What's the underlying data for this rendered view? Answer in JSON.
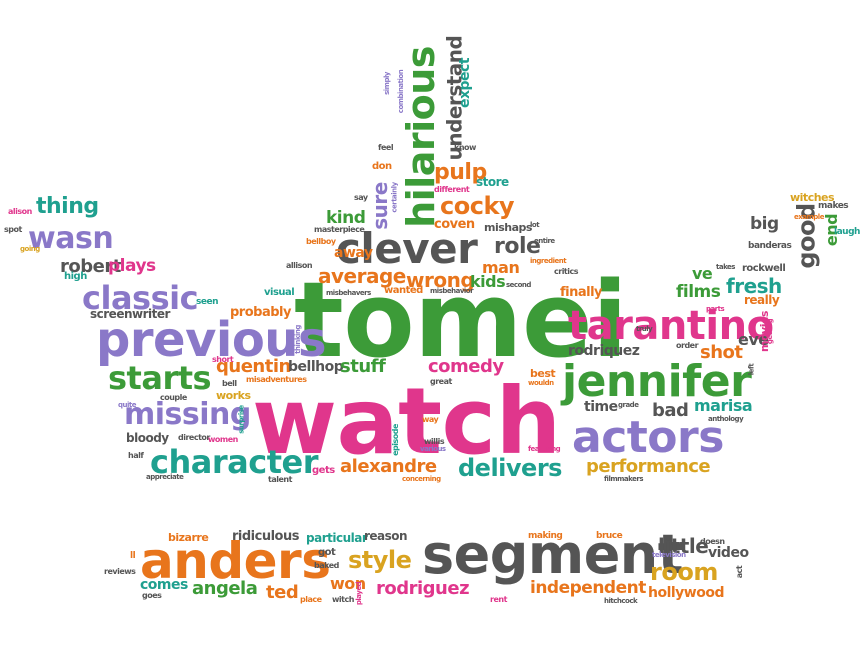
{
  "palette": {
    "pink": "#e0368c",
    "green": "#3c9b38",
    "orange": "#e8751c",
    "purple": "#8a78c8",
    "gray": "#555555",
    "teal": "#1fa08f",
    "yellow": "#d9a320"
  },
  "words": [
    {
      "text": "watch",
      "color": "pink"
    },
    {
      "text": "tomei",
      "color": "green"
    },
    {
      "text": "segment",
      "color": "gray"
    },
    {
      "text": "anders",
      "color": "orange"
    },
    {
      "text": "jennifer",
      "color": "green"
    },
    {
      "text": "tarantino",
      "color": "pink"
    },
    {
      "text": "actors",
      "color": "purple"
    },
    {
      "text": "previous",
      "color": "purple"
    },
    {
      "text": "clever",
      "color": "gray"
    },
    {
      "text": "character",
      "color": "teal"
    },
    {
      "text": "hilarious",
      "color": "green"
    },
    {
      "text": "classic",
      "color": "purple"
    },
    {
      "text": "starts",
      "color": "green"
    },
    {
      "text": "missing",
      "color": "purple"
    },
    {
      "text": "delivers",
      "color": "teal"
    },
    {
      "text": "performance",
      "color": "yellow"
    },
    {
      "text": "alexandre",
      "color": "orange"
    },
    {
      "text": "wasn",
      "color": "purple"
    },
    {
      "text": "thing",
      "color": "teal"
    },
    {
      "text": "robert",
      "color": "gray"
    },
    {
      "text": "plays",
      "color": "pink"
    },
    {
      "text": "screenwriter",
      "color": "gray"
    },
    {
      "text": "probably",
      "color": "orange"
    },
    {
      "text": "quentin",
      "color": "orange"
    },
    {
      "text": "bellhop",
      "color": "gray"
    },
    {
      "text": "stuff",
      "color": "green"
    },
    {
      "text": "comedy",
      "color": "pink"
    },
    {
      "text": "average",
      "color": "orange"
    },
    {
      "text": "wrong",
      "color": "orange"
    },
    {
      "text": "kids",
      "color": "green"
    },
    {
      "text": "man",
      "color": "orange"
    },
    {
      "text": "role",
      "color": "gray"
    },
    {
      "text": "cocky",
      "color": "orange"
    },
    {
      "text": "kind",
      "color": "green"
    },
    {
      "text": "away",
      "color": "orange"
    },
    {
      "text": "pulp",
      "color": "orange"
    },
    {
      "text": "coven",
      "color": "orange"
    },
    {
      "text": "mishaps",
      "color": "gray"
    },
    {
      "text": "store",
      "color": "teal"
    },
    {
      "text": "understand",
      "color": "gray"
    },
    {
      "text": "expect",
      "color": "teal"
    },
    {
      "text": "sure",
      "color": "purple"
    },
    {
      "text": "fresh",
      "color": "teal"
    },
    {
      "text": "films",
      "color": "green"
    },
    {
      "text": "ve",
      "color": "green"
    },
    {
      "text": "good",
      "color": "gray"
    },
    {
      "text": "big",
      "color": "gray"
    },
    {
      "text": "eve",
      "color": "gray"
    },
    {
      "text": "end",
      "color": "green"
    },
    {
      "text": "shot",
      "color": "orange"
    },
    {
      "text": "rodriquez",
      "color": "gray"
    },
    {
      "text": "bad",
      "color": "gray"
    },
    {
      "text": "marisa",
      "color": "teal"
    },
    {
      "text": "time",
      "color": "gray"
    },
    {
      "text": "finally",
      "color": "orange"
    },
    {
      "text": "really",
      "color": "orange"
    },
    {
      "text": "movies",
      "color": "pink"
    },
    {
      "text": "style",
      "color": "yellow"
    },
    {
      "text": "rodriguez",
      "color": "pink"
    },
    {
      "text": "angela",
      "color": "green"
    },
    {
      "text": "ted",
      "color": "orange"
    },
    {
      "text": "won",
      "color": "orange"
    },
    {
      "text": "independent",
      "color": "orange"
    },
    {
      "text": "room",
      "color": "yellow"
    },
    {
      "text": "little",
      "color": "gray"
    },
    {
      "text": "hollywood",
      "color": "orange"
    },
    {
      "text": "comes",
      "color": "teal"
    },
    {
      "text": "video",
      "color": "gray"
    },
    {
      "text": "bizarre",
      "color": "orange"
    },
    {
      "text": "ridiculous",
      "color": "gray"
    },
    {
      "text": "particular",
      "color": "teal"
    },
    {
      "text": "reason",
      "color": "gray"
    },
    {
      "text": "rockwell",
      "color": "gray"
    },
    {
      "text": "banderas",
      "color": "gray"
    },
    {
      "text": "witches",
      "color": "yellow"
    },
    {
      "text": "makes",
      "color": "gray"
    },
    {
      "text": "laugh",
      "color": "teal"
    },
    {
      "text": "works",
      "color": "yellow"
    },
    {
      "text": "bloody",
      "color": "gray"
    },
    {
      "text": "visual",
      "color": "teal"
    },
    {
      "text": "seen",
      "color": "teal"
    },
    {
      "text": "best",
      "color": "orange"
    },
    {
      "text": "alison",
      "color": "pink"
    },
    {
      "text": "spot",
      "color": "gray"
    },
    {
      "text": "going",
      "color": "yellow"
    },
    {
      "text": "high",
      "color": "teal"
    },
    {
      "text": "short",
      "color": "pink"
    },
    {
      "text": "bell",
      "color": "gray"
    },
    {
      "text": "misadventures",
      "color": "orange"
    },
    {
      "text": "couple",
      "color": "gray"
    },
    {
      "text": "quite",
      "color": "purple"
    },
    {
      "text": "half",
      "color": "gray"
    },
    {
      "text": "appreciate",
      "color": "gray"
    },
    {
      "text": "director",
      "color": "gray"
    },
    {
      "text": "women",
      "color": "pink"
    },
    {
      "text": "surprise",
      "color": "teal"
    },
    {
      "text": "talent",
      "color": "gray"
    },
    {
      "text": "gets",
      "color": "pink"
    },
    {
      "text": "concerning",
      "color": "orange"
    },
    {
      "text": "episode",
      "color": "teal"
    },
    {
      "text": "willis",
      "color": "gray"
    },
    {
      "text": "various",
      "color": "purple"
    },
    {
      "text": "way",
      "color": "orange"
    },
    {
      "text": "great",
      "color": "gray"
    },
    {
      "text": "featuring",
      "color": "pink"
    },
    {
      "text": "wouldn",
      "color": "orange"
    },
    {
      "text": "grade",
      "color": "gray"
    },
    {
      "text": "anthology",
      "color": "gray"
    },
    {
      "text": "filmmakers",
      "color": "gray"
    },
    {
      "text": "order",
      "color": "gray"
    },
    {
      "text": "left",
      "color": "gray"
    },
    {
      "text": "getting",
      "color": "pink"
    },
    {
      "text": "truly",
      "color": "gray"
    },
    {
      "text": "parts",
      "color": "pink"
    },
    {
      "text": "takes",
      "color": "gray"
    },
    {
      "text": "example",
      "color": "orange"
    },
    {
      "text": "critics",
      "color": "gray"
    },
    {
      "text": "ingredient",
      "color": "orange"
    },
    {
      "text": "second",
      "color": "gray"
    },
    {
      "text": "entire",
      "color": "gray"
    },
    {
      "text": "lot",
      "color": "gray"
    },
    {
      "text": "misbehavers",
      "color": "gray"
    },
    {
      "text": "misbehavior",
      "color": "gray"
    },
    {
      "text": "wanted",
      "color": "orange"
    },
    {
      "text": "allison",
      "color": "gray"
    },
    {
      "text": "masterpiece",
      "color": "gray"
    },
    {
      "text": "bellboy",
      "color": "orange"
    },
    {
      "text": "thinking",
      "color": "purple"
    },
    {
      "text": "don",
      "color": "orange"
    },
    {
      "text": "say",
      "color": "gray"
    },
    {
      "text": "feel",
      "color": "gray"
    },
    {
      "text": "certainly",
      "color": "purple"
    },
    {
      "text": "different",
      "color": "pink"
    },
    {
      "text": "know",
      "color": "gray"
    },
    {
      "text": "simply",
      "color": "purple"
    },
    {
      "text": "combination",
      "color": "purple"
    },
    {
      "text": "reviews",
      "color": "gray"
    },
    {
      "text": "ll",
      "color": "orange"
    },
    {
      "text": "goes",
      "color": "gray"
    },
    {
      "text": "got",
      "color": "gray"
    },
    {
      "text": "baked",
      "color": "gray"
    },
    {
      "text": "place",
      "color": "orange"
    },
    {
      "text": "witch",
      "color": "gray"
    },
    {
      "text": "played",
      "color": "pink"
    },
    {
      "text": "rent",
      "color": "pink"
    },
    {
      "text": "making",
      "color": "orange"
    },
    {
      "text": "bruce",
      "color": "orange"
    },
    {
      "text": "doesn",
      "color": "gray"
    },
    {
      "text": "television",
      "color": "purple"
    },
    {
      "text": "act",
      "color": "gray"
    },
    {
      "text": "hitchcock",
      "color": "gray"
    }
  ]
}
